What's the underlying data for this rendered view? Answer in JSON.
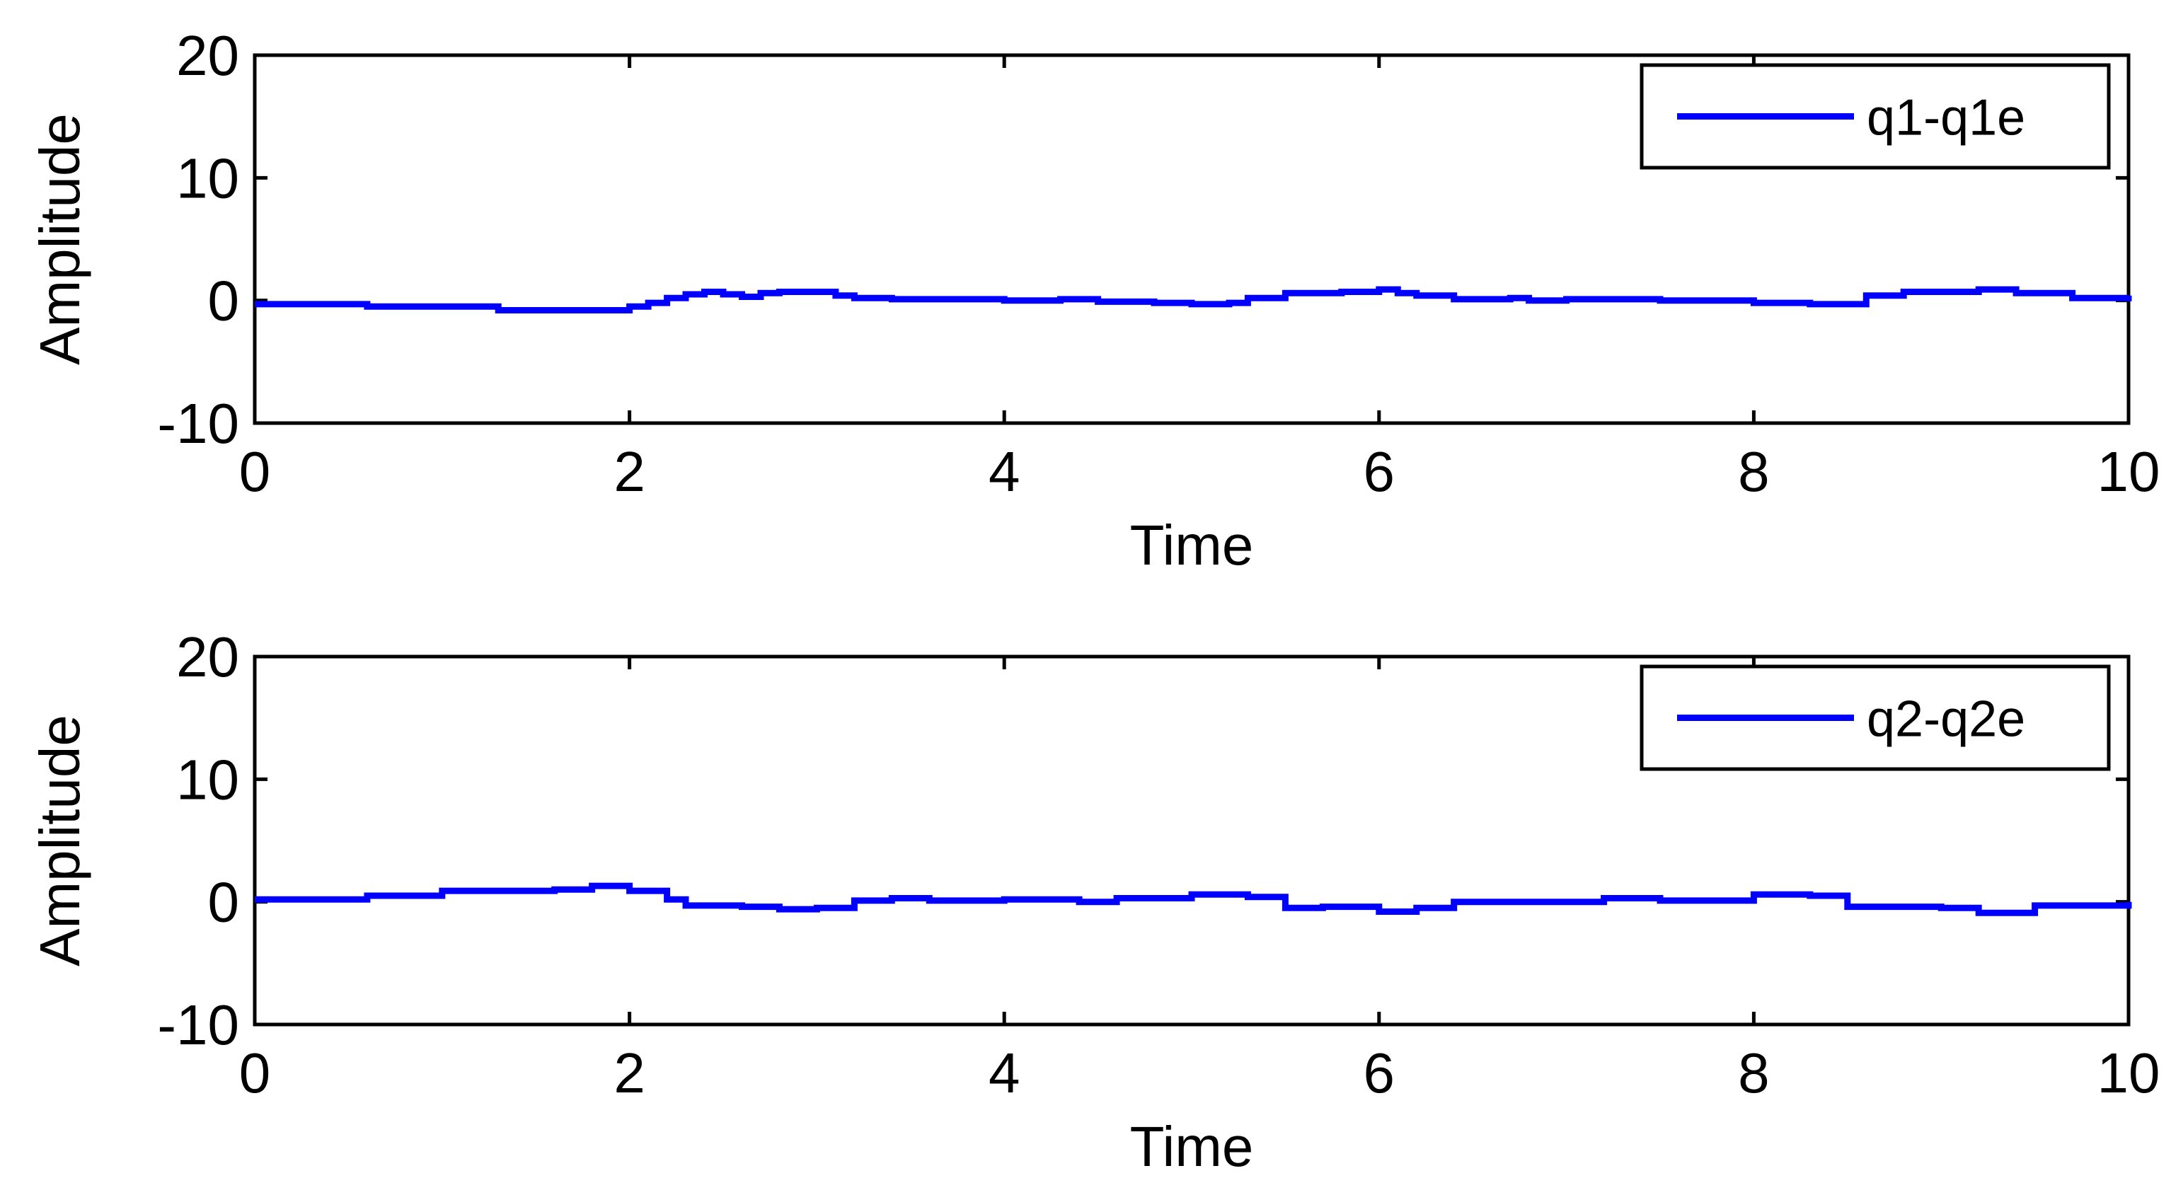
{
  "chart_data": [
    {
      "type": "line",
      "xlabel": "Time",
      "ylabel": "Amplitude",
      "xlim": [
        0,
        10
      ],
      "ylim": [
        -10,
        20
      ],
      "xticks": [
        0,
        2,
        4,
        6,
        8,
        10
      ],
      "yticks": [
        -10,
        0,
        10,
        20
      ],
      "grid": false,
      "legend_position": "top-right",
      "series": [
        {
          "name": "q1-q1e",
          "color": "#0000ff",
          "x": [
            0,
            0.5,
            0.6,
            1.2,
            1.3,
            1.9,
            2.0,
            2.1,
            2.2,
            2.3,
            2.4,
            2.5,
            2.6,
            2.7,
            2.8,
            3.0,
            3.1,
            3.2,
            3.4,
            3.8,
            4.0,
            4.3,
            4.5,
            4.8,
            5.0,
            5.2,
            5.3,
            5.5,
            5.8,
            6.0,
            6.1,
            6.2,
            6.4,
            6.7,
            6.8,
            7.0,
            7.5,
            8.0,
            8.3,
            8.6,
            8.8,
            9.0,
            9.2,
            9.4,
            9.7,
            10.0
          ],
          "y": [
            -0.3,
            -0.3,
            -0.5,
            -0.5,
            -0.8,
            -0.8,
            -0.5,
            -0.2,
            0.2,
            0.5,
            0.7,
            0.5,
            0.3,
            0.6,
            0.7,
            0.7,
            0.4,
            0.2,
            0.1,
            0.1,
            0.0,
            0.1,
            -0.1,
            -0.2,
            -0.3,
            -0.2,
            0.2,
            0.6,
            0.7,
            0.9,
            0.6,
            0.4,
            0.1,
            0.2,
            0.0,
            0.1,
            0.0,
            -0.2,
            -0.3,
            0.4,
            0.7,
            0.7,
            0.9,
            0.6,
            0.2,
            0.4
          ]
        }
      ]
    },
    {
      "type": "line",
      "xlabel": "Time",
      "ylabel": "Amplitude",
      "xlim": [
        0,
        10
      ],
      "ylim": [
        -10,
        20
      ],
      "xticks": [
        0,
        2,
        4,
        6,
        8,
        10
      ],
      "yticks": [
        -10,
        0,
        10,
        20
      ],
      "grid": false,
      "legend_position": "top-right",
      "series": [
        {
          "name": "q2-q2e",
          "color": "#0000ff",
          "x": [
            0,
            0.6,
            1.0,
            1.6,
            1.8,
            2.0,
            2.2,
            2.3,
            2.6,
            2.8,
            3.0,
            3.2,
            3.4,
            3.6,
            4.0,
            4.4,
            4.6,
            5.0,
            5.3,
            5.5,
            5.7,
            6.0,
            6.2,
            6.4,
            7.0,
            7.2,
            7.5,
            8.0,
            8.3,
            8.5,
            9.0,
            9.2,
            9.5,
            10.0
          ],
          "y": [
            0.2,
            0.5,
            0.9,
            1.0,
            1.3,
            0.9,
            0.2,
            -0.3,
            -0.4,
            -0.6,
            -0.5,
            0.1,
            0.3,
            0.1,
            0.2,
            0.0,
            0.3,
            0.6,
            0.4,
            -0.5,
            -0.4,
            -0.8,
            -0.5,
            0.0,
            0.0,
            0.3,
            0.1,
            0.6,
            0.5,
            -0.4,
            -0.5,
            -0.9,
            -0.3,
            0.0
          ]
        }
      ]
    }
  ]
}
